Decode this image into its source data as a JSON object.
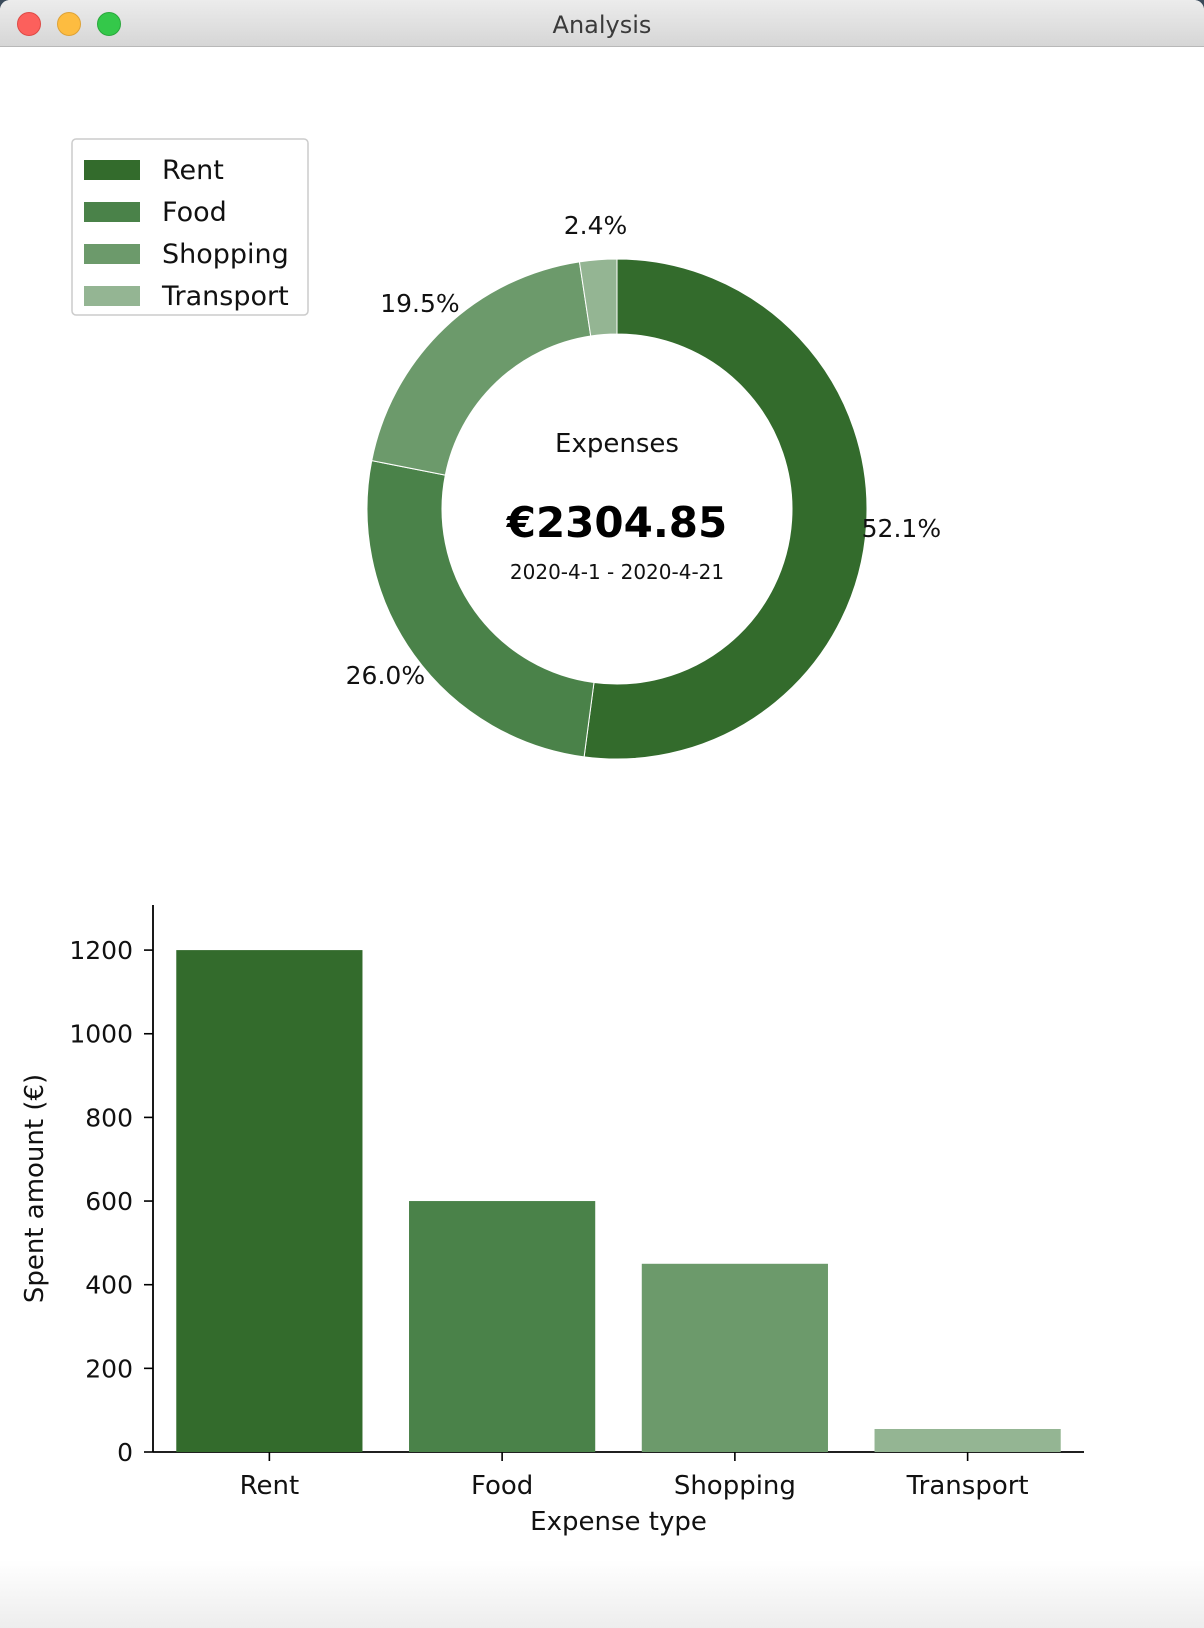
{
  "window": {
    "title": "Analysis"
  },
  "colors": [
    "#336b2c",
    "#4a8249",
    "#6c9a6b",
    "#94b593"
  ],
  "donut": {
    "center_label": "Expenses",
    "total": "€2304.85",
    "date_range": "2020-4-1 - 2020-4-21",
    "legend": [
      "Rent",
      "Food",
      "Shopping",
      "Transport"
    ]
  },
  "chart_data": [
    {
      "type": "pie",
      "style": "donut",
      "categories": [
        "Rent",
        "Food",
        "Shopping",
        "Transport"
      ],
      "values": [
        52.1,
        26.0,
        19.5,
        2.4
      ],
      "labels": [
        "52.1%",
        "26.0%",
        "19.5%",
        "2.4%"
      ],
      "legend_position": "top-left"
    },
    {
      "type": "bar",
      "categories": [
        "Rent",
        "Food",
        "Shopping",
        "Transport"
      ],
      "values": [
        1200,
        600,
        450,
        55
      ],
      "xlabel": "Expense type",
      "ylabel": "Spent amount (€)",
      "ylim": [
        0,
        1260
      ],
      "yticks": [
        0,
        200,
        400,
        600,
        800,
        1000,
        1200
      ],
      "grid": false
    }
  ]
}
